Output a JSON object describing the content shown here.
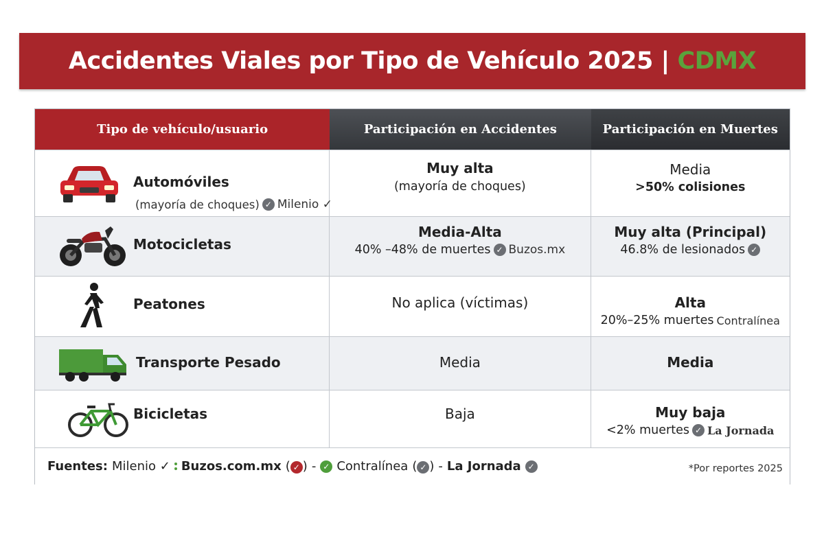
{
  "title": {
    "main": "Accidentes Viales por Tipo de Vehículo 2025 |",
    "accent": "CDMX"
  },
  "table": {
    "headers": [
      "Tipo de vehículo/usuario",
      "Participación en Accidentes",
      "Participación en Muertes"
    ],
    "rows": [
      {
        "icon": "car-icon",
        "name": "Automóviles",
        "name_sub": "(mayoría de choques)",
        "name_source": "Milenio ✓",
        "accidents_main": "Muy alta",
        "accidents_sub": "(mayoría de choques)",
        "deaths_main": "Media",
        "deaths_sub": ">50% colisiones"
      },
      {
        "icon": "motorcycle-icon",
        "name": "Motocicletas",
        "accidents_main": "Media-Alta",
        "accidents_sub": "40% –48% de muertes",
        "accidents_source": "Buzos.mx",
        "deaths_main": "Muy alta (Principal)",
        "deaths_sub": "46.8% de lesionados"
      },
      {
        "icon": "pedestrian-icon",
        "name": "Peatones",
        "accidents_main": "No aplica (víctimas)",
        "deaths_main": "Alta",
        "deaths_sub": "20%–25% muertes",
        "deaths_source": "Contralínea"
      },
      {
        "icon": "truck-icon",
        "name": "Transporte Pesado",
        "accidents_main": "Media",
        "deaths_main": "Media"
      },
      {
        "icon": "bicycle-icon",
        "name": "Bicicletas",
        "accidents_main": "Baja",
        "deaths_main": "Muy baja",
        "deaths_sub": "<2% muertes",
        "deaths_source": "La Jornada"
      }
    ]
  },
  "footer": {
    "label": "Fuentes:",
    "sources": [
      "Milenio ✓",
      "Buzos.com.mx",
      "Contralínea",
      "La Jornada"
    ],
    "note": "*Por reportes 2025"
  },
  "colors": {
    "banner": "#a8262b",
    "accent": "#5aa33c",
    "header_dark": "#34373b",
    "row_alt": "#eef0f3"
  }
}
